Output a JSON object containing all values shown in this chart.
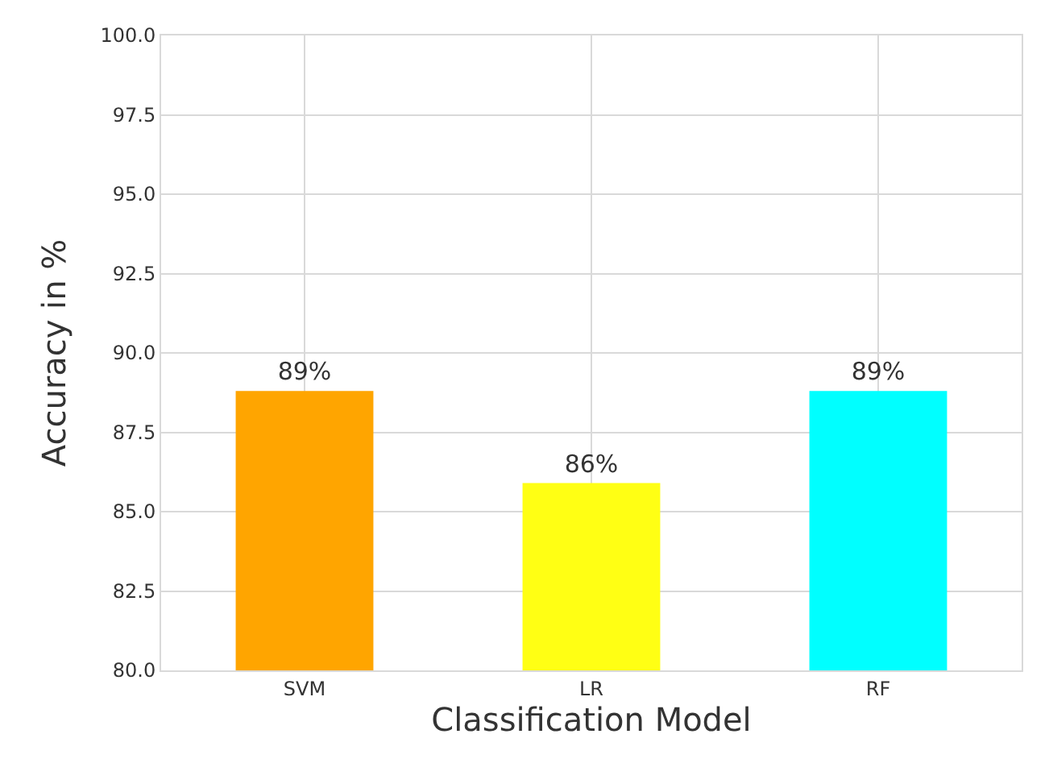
{
  "chart_data": {
    "type": "bar",
    "xlabel": "Classification Model",
    "ylabel": "Accuracy in %",
    "categories": [
      "SVM",
      "LR",
      "RF"
    ],
    "values": [
      88.8,
      85.9,
      88.8
    ],
    "colors": [
      "#ffa500",
      "#ffff14",
      "#00ffff"
    ],
    "value_labels": [
      "89%",
      "86%",
      "89%"
    ],
    "ylim": [
      80,
      100
    ],
    "yticks": [
      {
        "value": 80,
        "label": "80.0"
      },
      {
        "value": 82.5,
        "label": "82.5"
      },
      {
        "value": 85,
        "label": "85.0"
      },
      {
        "value": 87.5,
        "label": "87.5"
      },
      {
        "value": 90,
        "label": "90.0"
      },
      {
        "value": 92.5,
        "label": "92.5"
      },
      {
        "value": 95,
        "label": "95.0"
      },
      {
        "value": 97.5,
        "label": "97.5"
      },
      {
        "value": 100,
        "label": "100.0"
      }
    ],
    "grid": true
  }
}
